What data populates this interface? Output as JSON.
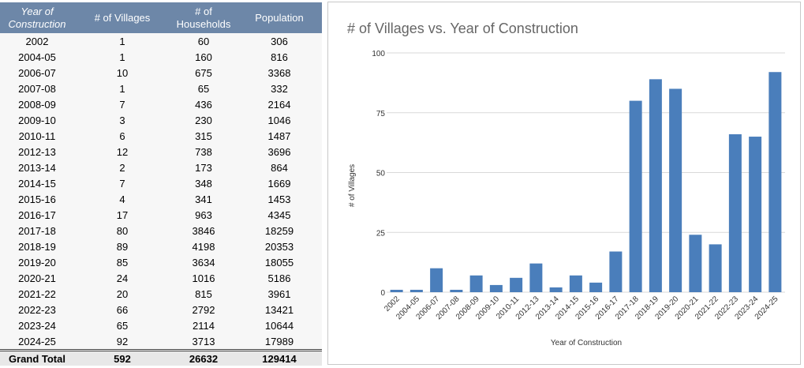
{
  "table": {
    "header": [
      "Year of Construction",
      "# of Villages",
      "# of Households",
      "Population"
    ],
    "rows": [
      [
        "2002",
        "1",
        "60",
        "306"
      ],
      [
        "2004-05",
        "1",
        "160",
        "816"
      ],
      [
        "2006-07",
        "10",
        "675",
        "3368"
      ],
      [
        "2007-08",
        "1",
        "65",
        "332"
      ],
      [
        "2008-09",
        "7",
        "436",
        "2164"
      ],
      [
        "2009-10",
        "3",
        "230",
        "1046"
      ],
      [
        "2010-11",
        "6",
        "315",
        "1487"
      ],
      [
        "2012-13",
        "12",
        "738",
        "3696"
      ],
      [
        "2013-14",
        "2",
        "173",
        "864"
      ],
      [
        "2014-15",
        "7",
        "348",
        "1669"
      ],
      [
        "2015-16",
        "4",
        "341",
        "1453"
      ],
      [
        "2016-17",
        "17",
        "963",
        "4345"
      ],
      [
        "2017-18",
        "80",
        "3846",
        "18259"
      ],
      [
        "2018-19",
        "89",
        "4198",
        "20353"
      ],
      [
        "2019-20",
        "85",
        "3634",
        "18055"
      ],
      [
        "2020-21",
        "24",
        "1016",
        "5186"
      ],
      [
        "2021-22",
        "20",
        "815",
        "3961"
      ],
      [
        "2022-23",
        "66",
        "2792",
        "13421"
      ],
      [
        "2023-24",
        "65",
        "2114",
        "10644"
      ],
      [
        "2024-25",
        "92",
        "3713",
        "17989"
      ]
    ],
    "total": [
      "Grand Total",
      "592",
      "26632",
      "129414"
    ]
  },
  "chart_data": {
    "type": "bar",
    "title": "# of Villages vs. Year of Construction",
    "x_label": "Year of Construction",
    "y_label": "# of Villages",
    "categories": [
      "2002",
      "2004-05",
      "2006-07",
      "2007-08",
      "2008-09",
      "2009-10",
      "2010-11",
      "2012-13",
      "2013-14",
      "2014-15",
      "2015-16",
      "2016-17",
      "2017-18",
      "2018-19",
      "2019-20",
      "2020-21",
      "2021-22",
      "2022-23",
      "2023-24",
      "2024-25"
    ],
    "values": [
      1,
      1,
      10,
      1,
      7,
      3,
      6,
      12,
      2,
      7,
      4,
      17,
      80,
      89,
      85,
      24,
      20,
      66,
      65,
      92
    ],
    "color": "#4a7ebb",
    "ylim": [
      0,
      100
    ],
    "yticks": [
      0,
      25,
      50,
      75,
      100
    ],
    "grid": true
  }
}
